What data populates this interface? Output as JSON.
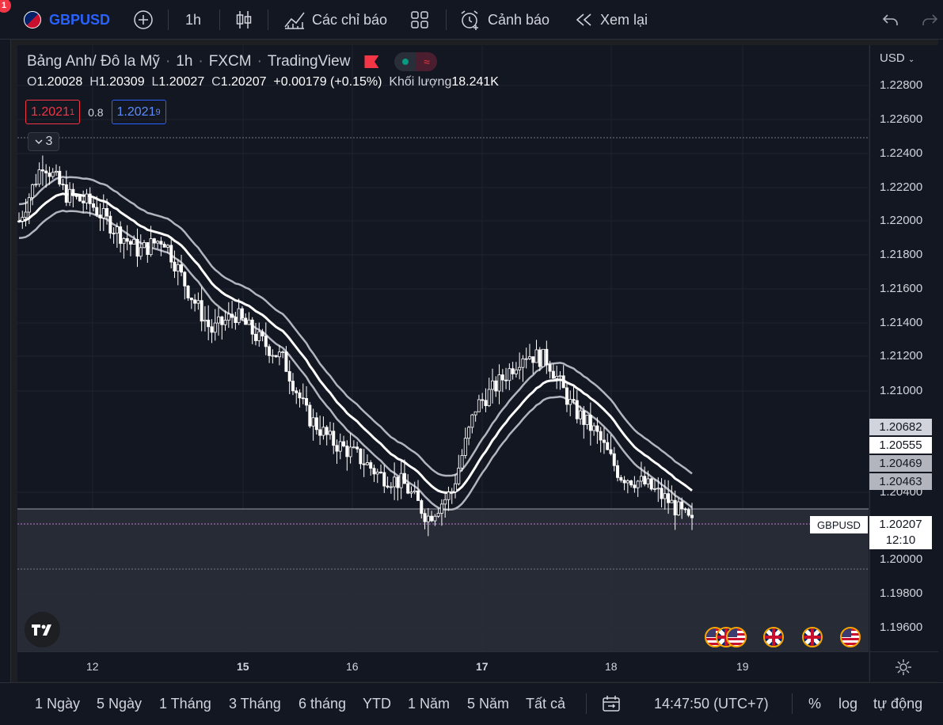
{
  "toolbar": {
    "notification_count": "1",
    "symbol": "GBPUSD",
    "interval": "1h",
    "indicators_label": "Các chỉ báo",
    "alerts_label": "Cảnh báo",
    "replay_label": "Xem lại"
  },
  "legend": {
    "name": "Bảng Anh/ Đô la Mỹ",
    "interval": "1h",
    "exchange": "FXCM",
    "source": "TradingView",
    "ohlc": {
      "o_label": "O",
      "o": "1.20028",
      "h_label": "H",
      "h": "1.20309",
      "l_label": "L",
      "l": "1.20027",
      "c_label": "C",
      "c": "1.20207",
      "change": "+0.00179 (+0.15%)",
      "volume_label": "Khối lượng",
      "volume": "18.241K"
    },
    "bid": "1.2021",
    "bid_sup": "1",
    "spread": "0.8",
    "ask": "1.2021",
    "ask_sup": "9",
    "collapsed_count": "3"
  },
  "price_scale": {
    "currency": "USD",
    "ticks": [
      "1.22800",
      "1.22600",
      "1.22400",
      "1.22200",
      "1.22000",
      "1.21800",
      "1.21600",
      "1.21400",
      "1.21200",
      "1.21000",
      "1.20400",
      "1.20000",
      "1.19800",
      "1.19600"
    ],
    "badges": [
      {
        "value": "1.20682",
        "bg": "#d1d4dc"
      },
      {
        "value": "1.20555",
        "bg": "#ffffff"
      },
      {
        "value": "1.20469",
        "bg": "#b2b5be"
      },
      {
        "value": "1.20463",
        "bg": "#b2b5be"
      }
    ],
    "last_price": "1.20207",
    "countdown": "12:10",
    "symbol_label": "GBPUSD"
  },
  "time_scale": {
    "labels": [
      {
        "text": "12",
        "bold": false
      },
      {
        "text": "15",
        "bold": true
      },
      {
        "text": "16",
        "bold": false
      },
      {
        "text": "17",
        "bold": true
      },
      {
        "text": "18",
        "bold": false
      },
      {
        "text": "19",
        "bold": false
      }
    ]
  },
  "bottom_bar": {
    "ranges": [
      "1 Ngày",
      "5 Ngày",
      "1 Tháng",
      "3 Tháng",
      "6 tháng",
      "YTD",
      "1 Năm",
      "5 Năm",
      "Tất cả"
    ],
    "clock": "14:47:50 (UTC+7)",
    "percent": "%",
    "log": "log",
    "auto": "tự động"
  },
  "colors": {
    "background": "#131722",
    "accent": "#2962ff",
    "candle": "#ffffff",
    "band_inner": "#ffffff",
    "band_outer": "#b2b5be",
    "bearish": "#f23645"
  },
  "chart_data": {
    "type": "candlestick",
    "series": [
      {
        "name": "GBPUSD",
        "kind": "candles"
      }
    ],
    "ylim": [
      1.1952,
      1.2297
    ],
    "approx_close_path": [
      1.22,
      1.2235,
      1.2215,
      1.221,
      1.2195,
      1.2182,
      1.219,
      1.216,
      1.2135,
      1.2145,
      1.213,
      1.2118,
      1.2085,
      1.207,
      1.2062,
      1.205,
      1.2045,
      1.2025,
      1.204,
      1.209,
      1.2105,
      1.2122,
      1.2118,
      1.209,
      1.2075,
      1.205,
      1.2045,
      1.2035,
      1.2021
    ]
  }
}
